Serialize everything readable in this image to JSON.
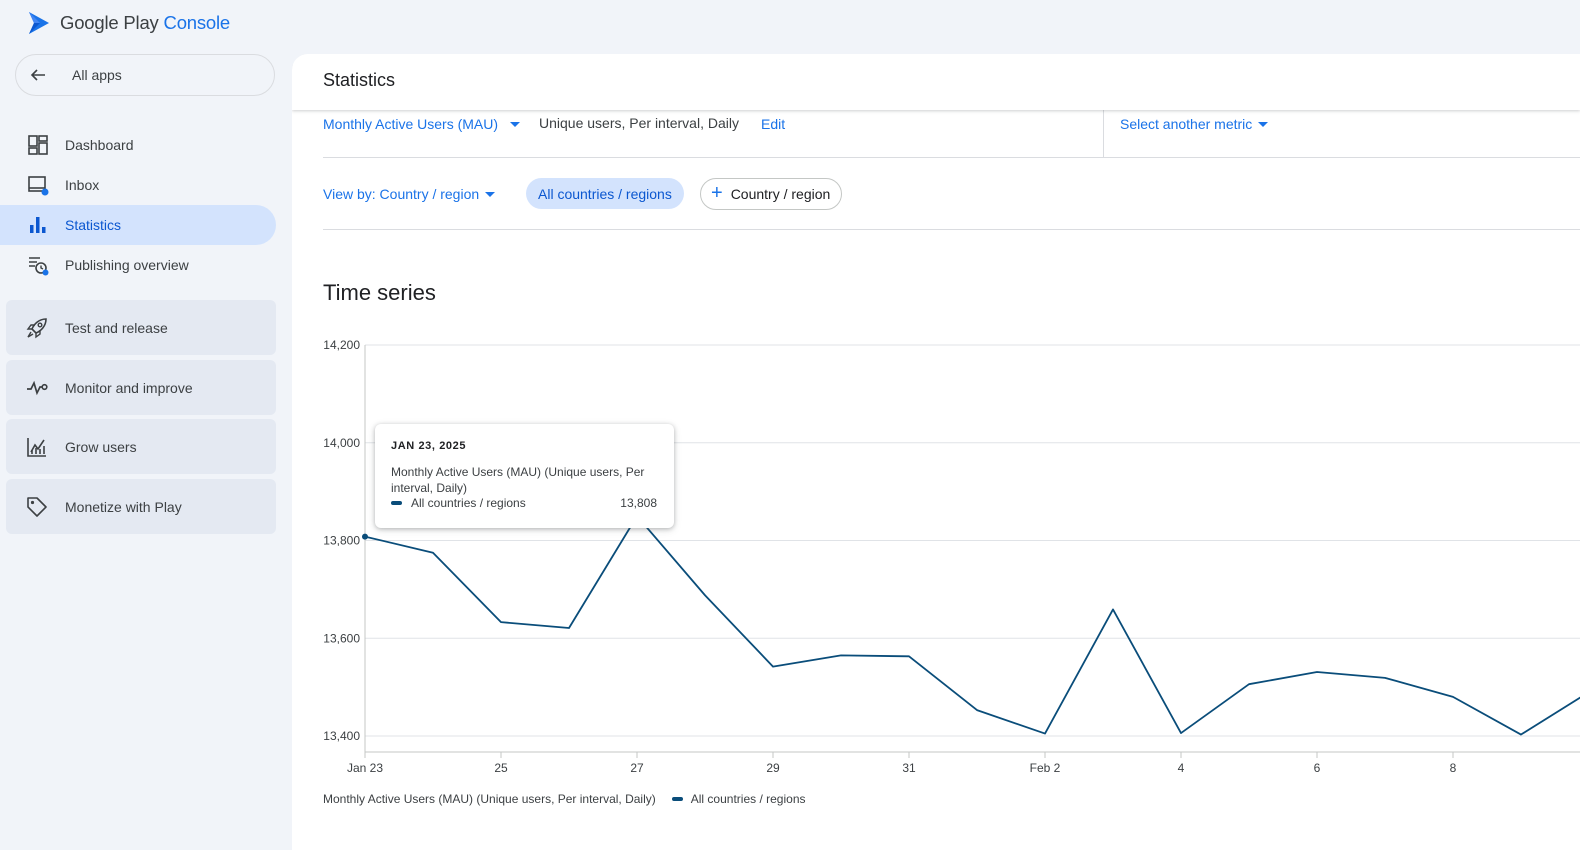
{
  "app": {
    "logo_google_play": "Google Play",
    "logo_console": "Console",
    "brand_color": "#1a73e8"
  },
  "sidebar": {
    "all_apps": "All apps",
    "items": [
      {
        "label": "Dashboard",
        "icon": "dashboard-icon"
      },
      {
        "label": "Inbox",
        "icon": "inbox-icon"
      },
      {
        "label": "Statistics",
        "icon": "bar-chart-icon",
        "active": true
      },
      {
        "label": "Publishing overview",
        "icon": "publishing-icon"
      }
    ],
    "sections": [
      {
        "label": "Test and release",
        "icon": "rocket-icon"
      },
      {
        "label": "Monitor and improve",
        "icon": "vitals-icon"
      },
      {
        "label": "Grow users",
        "icon": "grow-icon"
      },
      {
        "label": "Monetize with Play",
        "icon": "tag-icon"
      }
    ]
  },
  "main": {
    "title": "Statistics",
    "metric": {
      "name": "Monthly Active Users (MAU)",
      "description": "Unique users, Per interval, Daily",
      "edit": "Edit",
      "select_another": "Select another metric"
    },
    "view_by": "View by: Country / region",
    "chip_active": "All countries / regions",
    "chip_add": "Country / region",
    "time_series_title": "Time series",
    "tooltip": {
      "date": "JAN 23, 2025",
      "metric": "Monthly Active Users (MAU) (Unique users, Per interval, Daily)",
      "series": "All countries / regions",
      "value": "13,808"
    },
    "legend": {
      "metric": "Monthly Active Users (MAU) (Unique users, Per interval, Daily)",
      "series": "All countries / regions"
    }
  },
  "chart_data": {
    "type": "line",
    "x": [
      "Jan 23",
      "Jan 24",
      "Jan 25",
      "Jan 26",
      "Jan 27",
      "Jan 28",
      "Jan 29",
      "Jan 30",
      "Jan 31",
      "Feb 1",
      "Feb 2",
      "Feb 3",
      "Feb 4",
      "Feb 5",
      "Feb 6",
      "Feb 7",
      "Feb 8",
      "Feb 9",
      "Feb 10"
    ],
    "x_tick_labels": [
      "Jan 23",
      "25",
      "27",
      "29",
      "31",
      "Feb 2",
      "4",
      "6",
      "8"
    ],
    "x_tick_indices": [
      0,
      2,
      4,
      6,
      8,
      10,
      12,
      14,
      16
    ],
    "y_ticks": [
      13400,
      13600,
      13800,
      14000,
      14200
    ],
    "y_tick_labels": [
      "13,400",
      "13,600",
      "13,800",
      "14,000",
      "14,200"
    ],
    "ylim": [
      13400,
      14200
    ],
    "series": [
      {
        "name": "All countries / regions",
        "color": "#0a4d7a",
        "values": [
          13808,
          13775,
          13633,
          13621,
          13850,
          13688,
          13542,
          13565,
          13563,
          13453,
          13405,
          13659,
          13406,
          13506,
          13531,
          13519,
          13480,
          13403,
          13490
        ]
      }
    ],
    "grid": true,
    "legend_position": "bottom-left"
  }
}
